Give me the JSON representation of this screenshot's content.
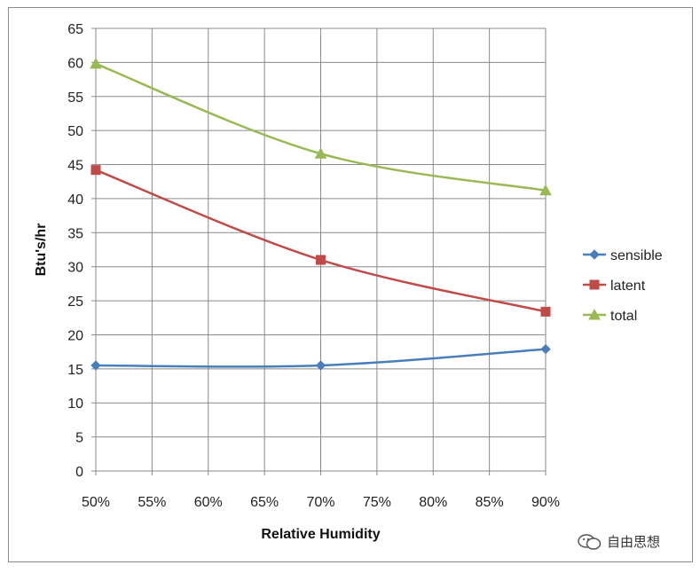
{
  "chart_data": {
    "type": "line",
    "categories": [
      "50%",
      "55%",
      "60%",
      "65%",
      "70%",
      "75%",
      "80%",
      "85%",
      "90%"
    ],
    "x": [
      50,
      70,
      90
    ],
    "xlim": [
      50,
      90
    ],
    "ylim": [
      0,
      65
    ],
    "ytick_step": 5,
    "xlabel": "Relative Humidity",
    "ylabel": "Btu's/hr",
    "grid": true,
    "legend_position": "right",
    "series": [
      {
        "name": "sensible",
        "values": [
          15.5,
          15.5,
          17.9
        ],
        "color": "#4a7ebb",
        "marker": "diamond"
      },
      {
        "name": "latent",
        "values": [
          44.2,
          31.0,
          23.4
        ],
        "color": "#be4b48",
        "marker": "square"
      },
      {
        "name": "total",
        "values": [
          59.8,
          46.6,
          41.2
        ],
        "color": "#98b954",
        "marker": "triangle"
      }
    ]
  },
  "watermark": {
    "text": "自由思想",
    "icon": "wechat-icon"
  }
}
